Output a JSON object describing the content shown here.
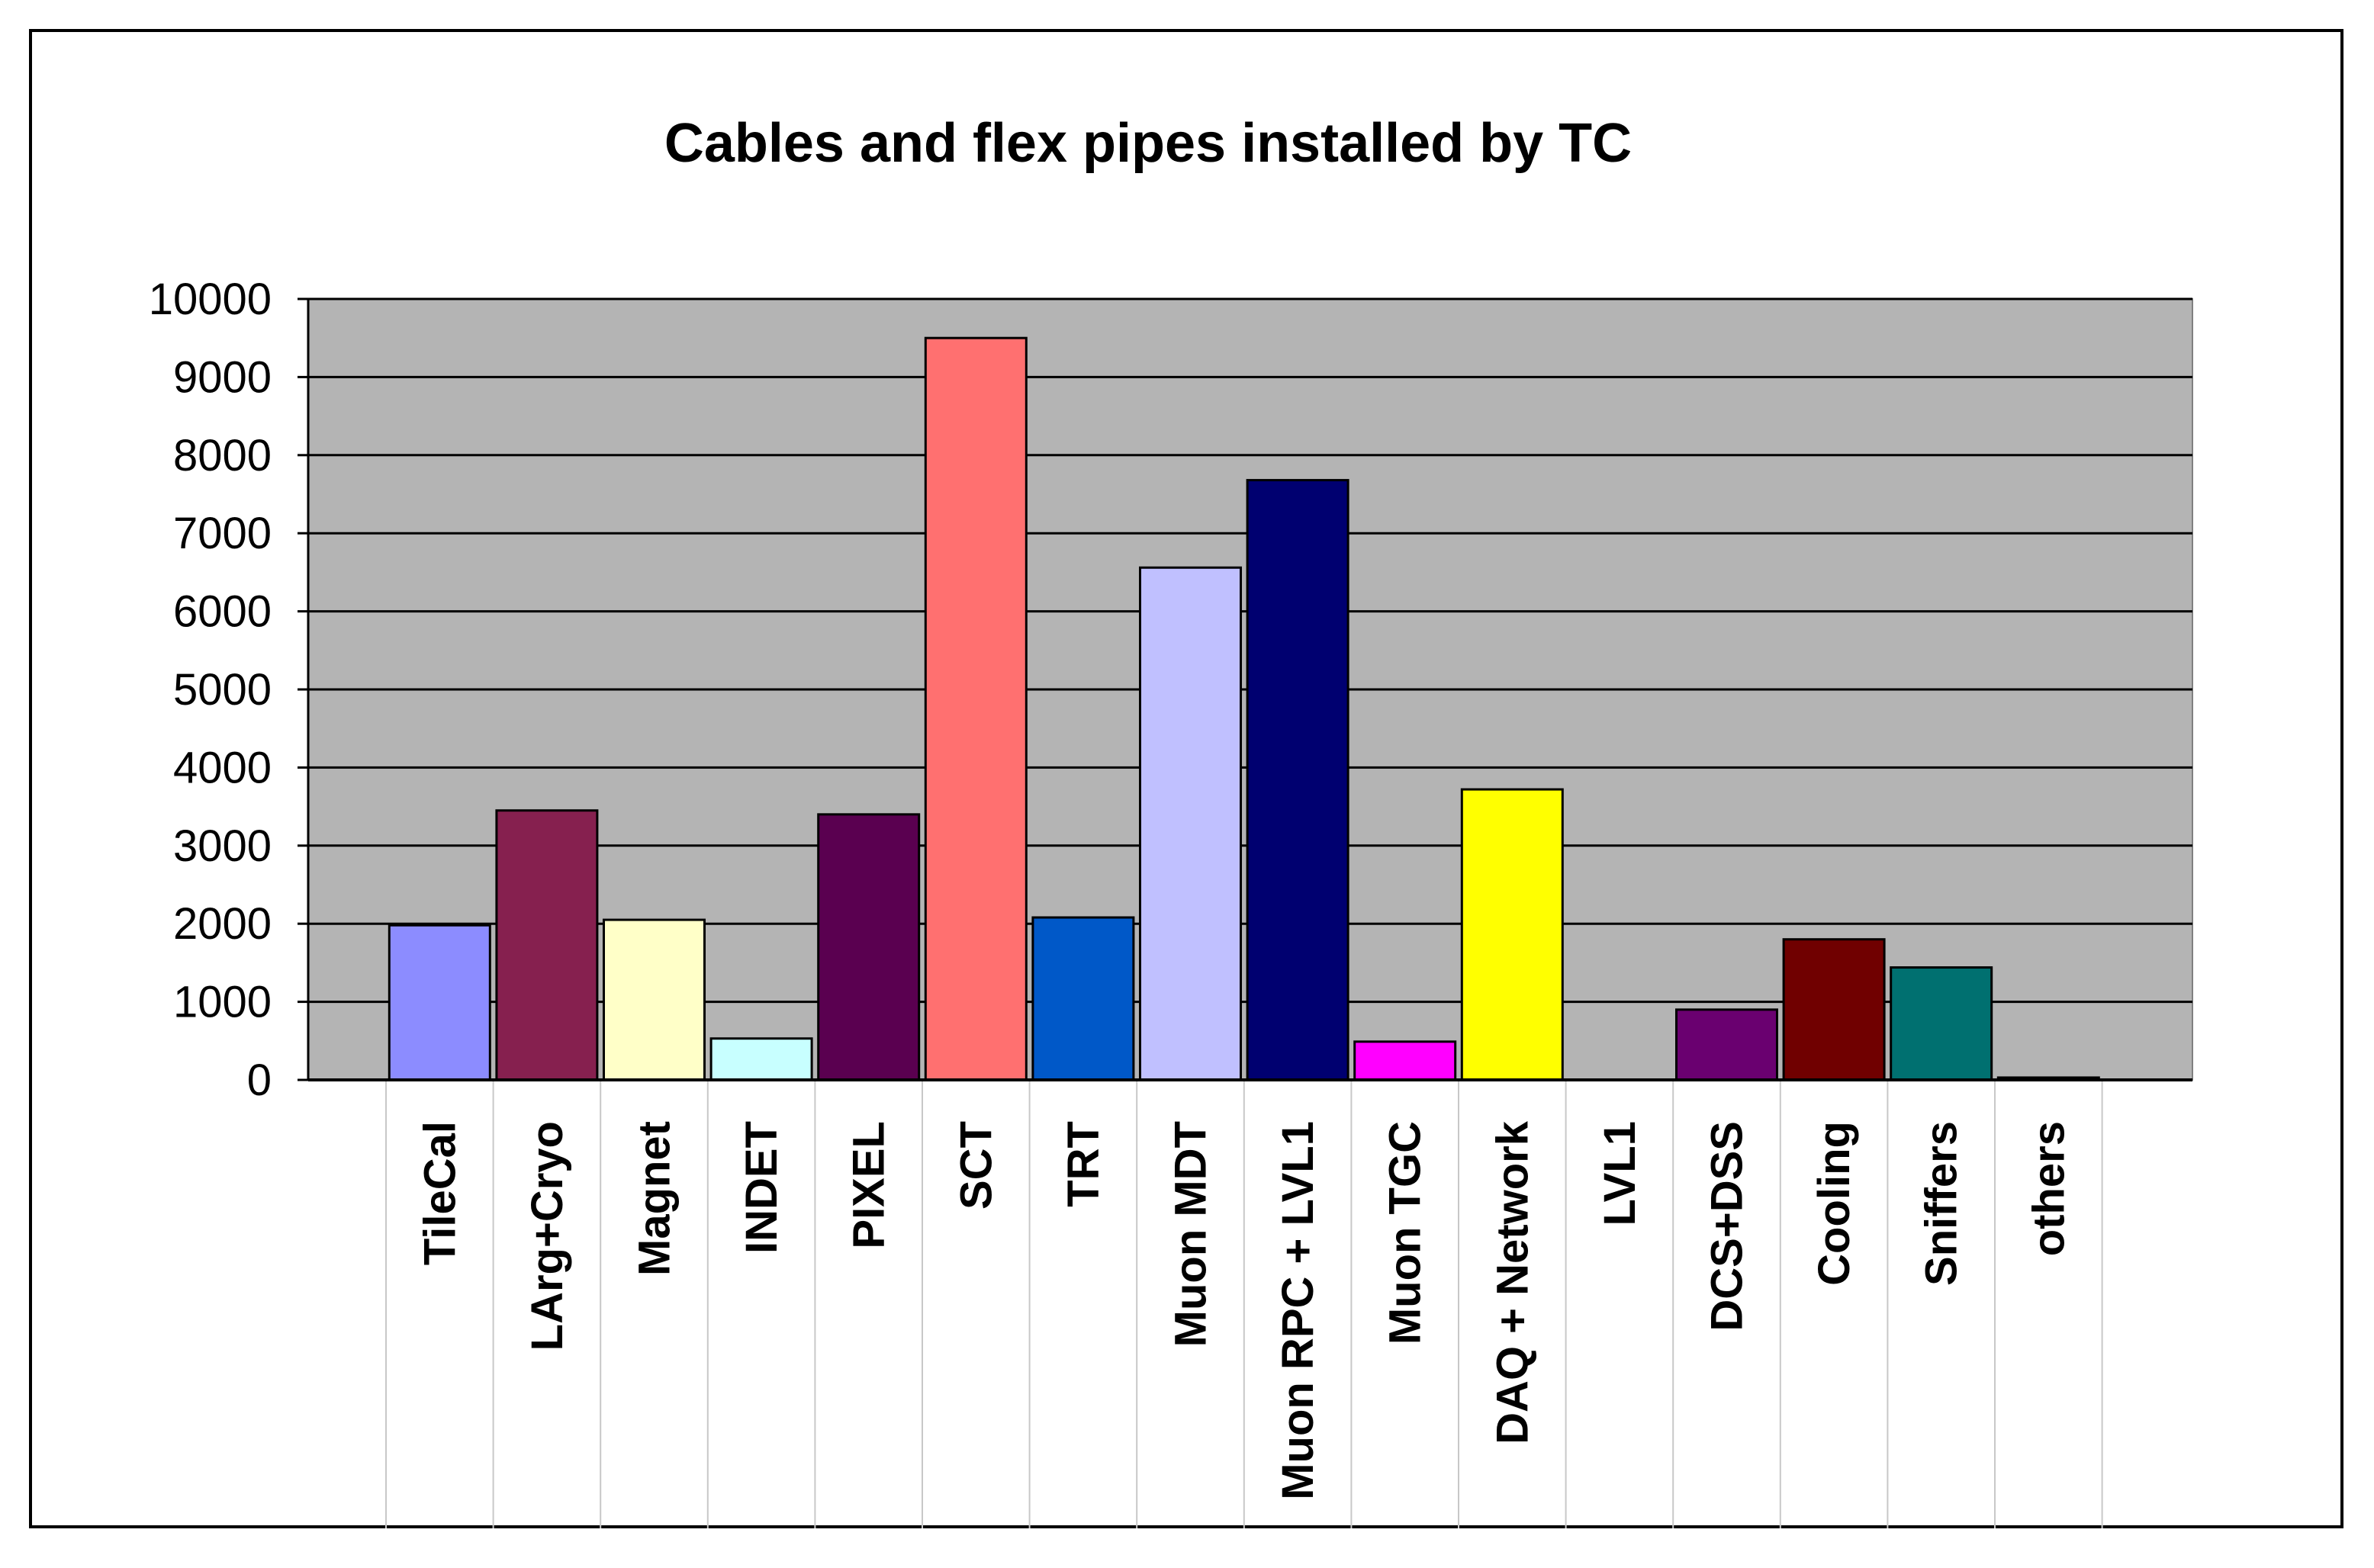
{
  "chart_data": {
    "type": "bar",
    "title": "Cables and flex pipes installed by TC",
    "xlabel": "",
    "ylabel": "",
    "categories": [
      "TileCal",
      "LArg+Cryo",
      "Magnet",
      "INDET",
      "PIXEL",
      "SCT",
      "TRT",
      "Muon MDT",
      "Muon RPC + LVL1",
      "Muon TGC",
      "DAQ + Network",
      "LVL1",
      "DCS+DSS",
      "Cooling",
      "Sniffers",
      "others"
    ],
    "values": [
      1980,
      3450,
      2050,
      530,
      3400,
      9500,
      2080,
      6560,
      7680,
      490,
      3720,
      0,
      900,
      1800,
      1440,
      30
    ],
    "colors": [
      "#8c8cff",
      "#86204f",
      "#ffffc8",
      "#c8ffff",
      "#5a0050",
      "#ff7070",
      "#0058c8",
      "#c0c0ff",
      "#000070",
      "#ff00ff",
      "#ffff00",
      "#000000",
      "#6a0070",
      "#700000",
      "#007070",
      "#000000"
    ],
    "yticks": [
      "0",
      "1000",
      "2000",
      "3000",
      "4000",
      "5000",
      "6000",
      "7000",
      "8000",
      "9000",
      "10000"
    ],
    "ylim": [
      0,
      10000
    ],
    "grid": true,
    "legend": "none",
    "plot_background": "#b4b4b4"
  }
}
